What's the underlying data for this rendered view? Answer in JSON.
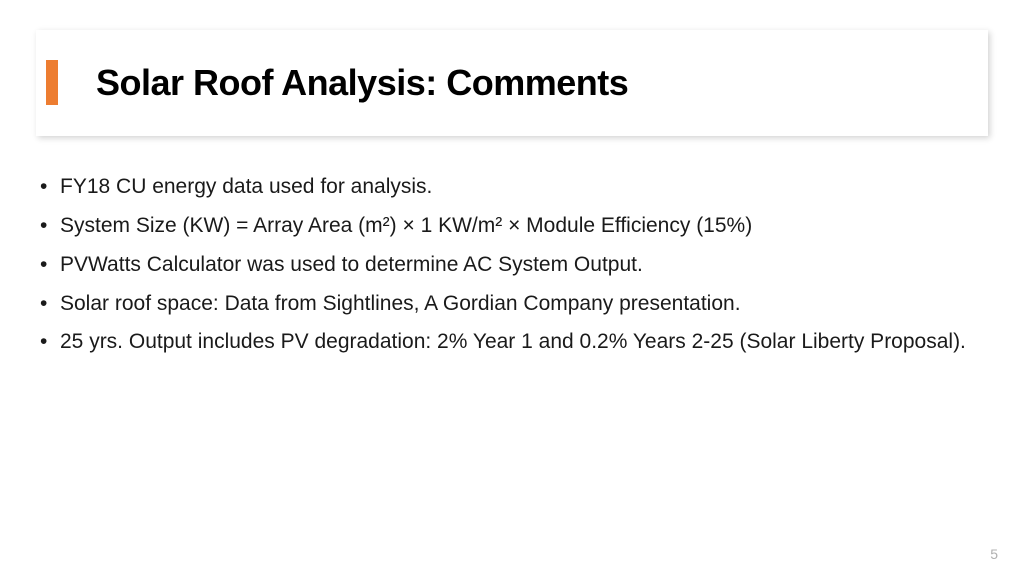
{
  "slide": {
    "title": "Solar Roof Analysis: Comments",
    "accent_color": "#ed7d31",
    "background_color": "#ffffff",
    "title_fontsize": 36,
    "title_fontweight": 800,
    "bullets": [
      "FY18 CU energy data used for analysis.",
      "System Size (KW) = Array Area (m²) × 1 KW/m² × Module Efficiency (15%)",
      "PVWatts Calculator was used to determine AC System Output.",
      "Solar roof space: Data from Sightlines, A Gordian Company presentation.",
      "25 yrs. Output includes PV degradation: 2% Year 1 and 0.2% Years 2-25 (Solar Liberty Proposal)."
    ],
    "bullet_fontsize": 21,
    "bullet_color": "#1a1a1a",
    "page_number": "5",
    "page_number_color": "#b0b0b0",
    "header_shadow_color": "rgba(0,0,0,0.18)"
  }
}
